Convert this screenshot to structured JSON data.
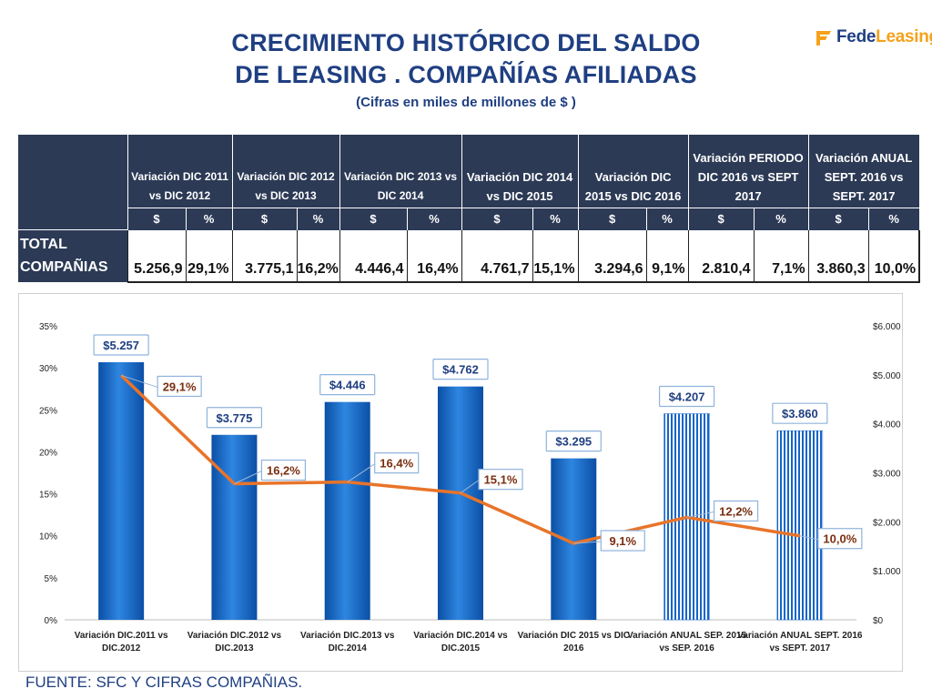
{
  "title_line1": "CRECIMIENTO HISTÓRICO DEL SALDO",
  "title_line2": "DE  LEASING . COMPAÑÍAS AFILIADAS",
  "subtitle": "(Cifras en miles de millones de $ )",
  "logo": {
    "part1": "Fede",
    "part2": "Leasing",
    "icon": "fedeleasing-logo-icon",
    "accent_color": "#f5a21b",
    "brand_color": "#1f3f82"
  },
  "table": {
    "columns": [
      "Variación DIC 2011 vs DIC 2012",
      "Variación DIC 2012 vs DIC 2013",
      "Variación DIC 2013 vs DIC 2014",
      "Variación DIC 2014 vs DIC 2015",
      "Variación DIC 2015 vs DIC 2016",
      "Variación PERIODO DIC 2016 vs SEPT 2017",
      "Variación ANUAL SEPT. 2016 vs SEPT. 2017"
    ],
    "unit_money": "$",
    "unit_pct": "%",
    "row_label_1": "TOTAL",
    "row_label_2": "COMPAÑIAS",
    "values": [
      {
        "money": "5.256,9",
        "pct": "29,1%"
      },
      {
        "money": "3.775,1",
        "pct": "16,2%"
      },
      {
        "money": "4.446,4",
        "pct": "16,4%"
      },
      {
        "money": "4.761,7",
        "pct": "15,1%"
      },
      {
        "money": "3.294,6",
        "pct": "9,1%"
      },
      {
        "money": "2.810,4",
        "pct": "7,1%"
      },
      {
        "money": "3.860,3",
        "pct": "10,0%"
      }
    ]
  },
  "chart_data": {
    "type": "bar",
    "categories": [
      [
        "Variación DIC.2011 vs",
        "DIC.2012"
      ],
      [
        "Variación DIC.2012 vs",
        "DIC.2013"
      ],
      [
        "Variación DIC.2013 vs",
        "DIC.2014"
      ],
      [
        "Variación DIC.2014 vs",
        "DIC.2015"
      ],
      [
        "Variación DIC 2015 vs DIC",
        "2016"
      ],
      [
        "Variación ANUAL SEP.  2015",
        "vs SEP. 2016"
      ],
      [
        "Variación ANUAL SEPT. 2016",
        "vs SEPT. 2017"
      ]
    ],
    "series": [
      {
        "type": "bar",
        "axis": "right",
        "values": [
          5257,
          3775,
          4446,
          4762,
          3295,
          4207,
          3860
        ],
        "labels": [
          "$5.257",
          "$3.775",
          "$4.446",
          "$4.762",
          "$3.295",
          "$4.207",
          "$3.860"
        ],
        "patterned": [
          false,
          false,
          false,
          false,
          false,
          true,
          true
        ],
        "color": "#1565c8"
      },
      {
        "type": "line",
        "axis": "left",
        "values": [
          29.1,
          16.2,
          16.4,
          15.1,
          9.1,
          12.2,
          10.0
        ],
        "labels": [
          "29,1%",
          "16,2%",
          "16,4%",
          "15,1%",
          "9,1%",
          "12,2%",
          "10,0%"
        ],
        "color": "#e8742a"
      }
    ],
    "y_left": {
      "min": 0,
      "max": 35,
      "step": 5,
      "ticks": [
        "0%",
        "5%",
        "10%",
        "15%",
        "20%",
        "25%",
        "30%",
        "35%"
      ]
    },
    "y_right": {
      "min": 0,
      "max": 6000,
      "step": 1000,
      "ticks": [
        "$0",
        "$1.000",
        "$2.000",
        "$3.000",
        "$4.000",
        "$5.000",
        "$6.000"
      ]
    },
    "grid": false,
    "legend": "none"
  },
  "source": "FUENTE: SFC Y CIFRAS COMPAÑIAS."
}
